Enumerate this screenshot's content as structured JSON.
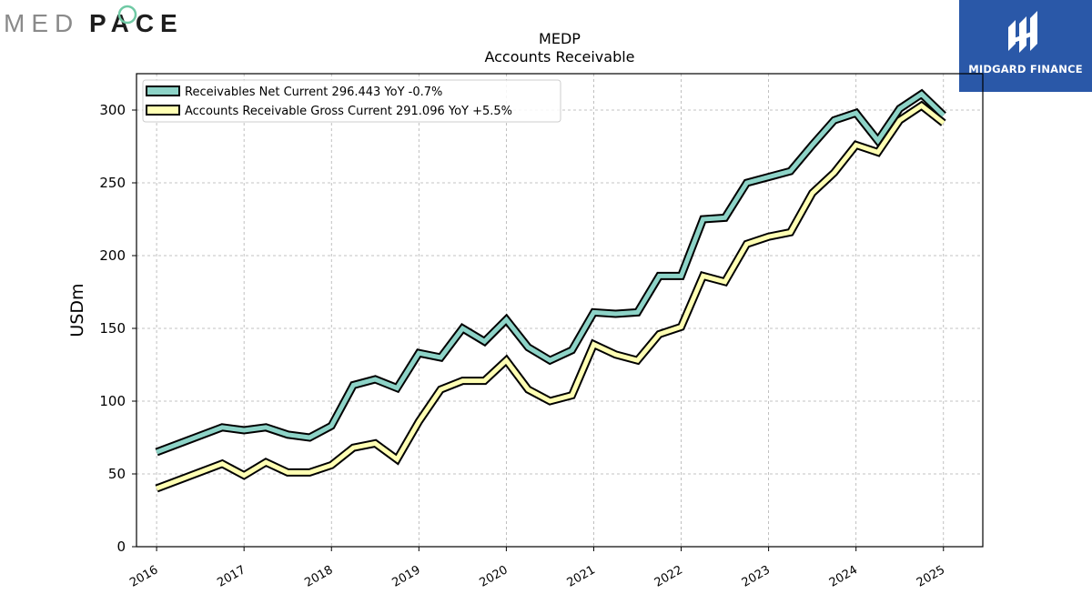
{
  "brand": {
    "left_logo": "MEDPACE",
    "left_logo_part1": "MED",
    "left_logo_part2": "PACE",
    "right_logo": "MIDGARD FINANCE",
    "right_bg": "#2a58a8"
  },
  "chart_data": {
    "type": "line",
    "title": "MEDP",
    "subtitle": "Accounts Receivable",
    "xlabel": "",
    "ylabel": "USDm",
    "ylim": [
      0,
      325
    ],
    "yticks": [
      0,
      50,
      100,
      150,
      200,
      250,
      300
    ],
    "xlim": [
      2015.77,
      2025.45
    ],
    "xticks": [
      "2016",
      "2017",
      "2018",
      "2019",
      "2020",
      "2021",
      "2022",
      "2023",
      "2024",
      "2025"
    ],
    "grid": true,
    "legend_position": "top-left",
    "x": [
      2016.0,
      2016.75,
      2017.0,
      2017.25,
      2017.5,
      2017.75,
      2018.0,
      2018.25,
      2018.5,
      2018.75,
      2019.0,
      2019.25,
      2019.5,
      2019.75,
      2020.0,
      2020.25,
      2020.5,
      2020.75,
      2021.0,
      2021.25,
      2021.5,
      2021.75,
      2022.0,
      2022.25,
      2022.5,
      2022.75,
      2023.0,
      2023.25,
      2023.5,
      2023.75,
      2024.0,
      2024.25,
      2024.5,
      2024.75,
      2025.0
    ],
    "series": [
      {
        "name": "Receivables Net Current",
        "legend_label": "Receivables Net Current  296.443 YoY -0.7%",
        "color": "#8dd3c7",
        "values": [
          65,
          82,
          80,
          82,
          77,
          75,
          83,
          111,
          115,
          109,
          133,
          130,
          150,
          141,
          156,
          137,
          128,
          135,
          161,
          160,
          161,
          186,
          186,
          225,
          226,
          250,
          254,
          258,
          276,
          293,
          298,
          279,
          301,
          311,
          296.443
        ]
      },
      {
        "name": "Accounts Receivable Gross Current",
        "legend_label": "Accounts Receivable Gross Current  291.096 YoY +5.5%",
        "color": "#ffffb3",
        "values": [
          40,
          57,
          49,
          58,
          51,
          51,
          56,
          68,
          71,
          60,
          86,
          108,
          114,
          114,
          128,
          108,
          100,
          104,
          139,
          132,
          128,
          146,
          151,
          186,
          182,
          208,
          213,
          216,
          243,
          257,
          276,
          271,
          293,
          303,
          291.096
        ]
      }
    ]
  }
}
